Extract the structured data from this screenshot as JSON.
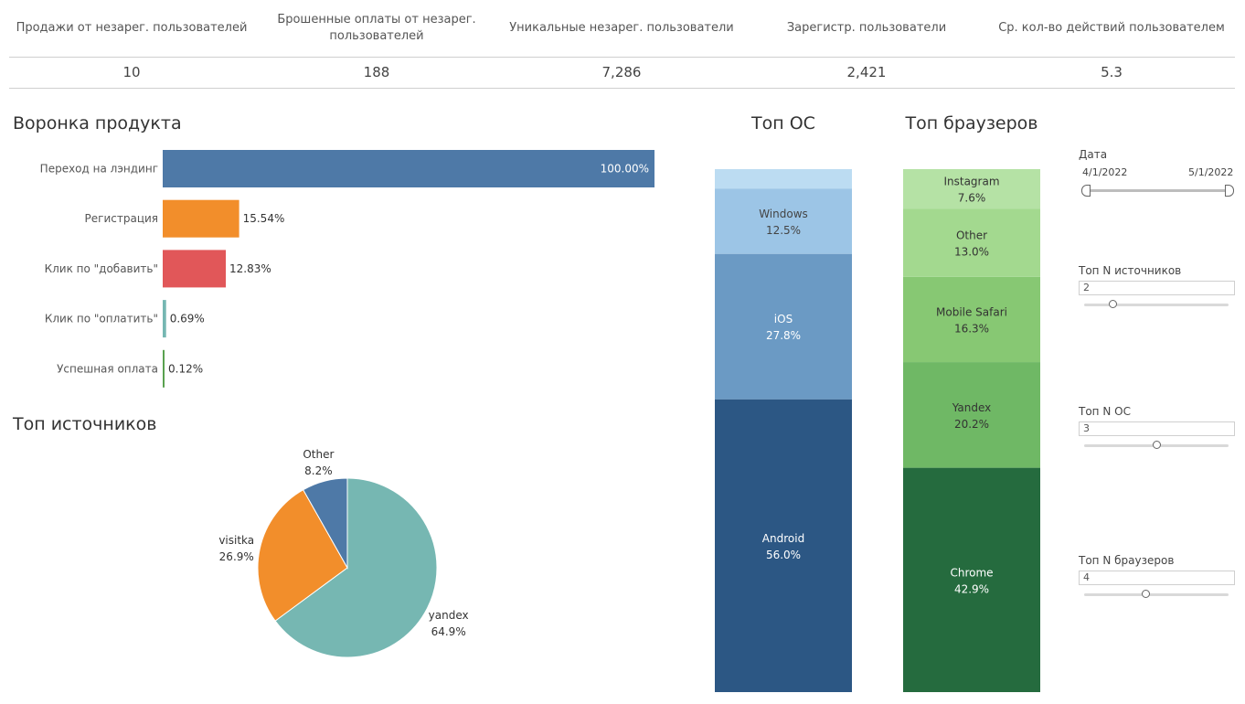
{
  "kpis": [
    {
      "label": "Продажи от незарег. пользователей",
      "value": "10"
    },
    {
      "label": "Брошенные оплаты от незарег. пользователей",
      "value": "188"
    },
    {
      "label": "Уникальные незарег. пользователи",
      "value": "7,286"
    },
    {
      "label": "Зарегистр. пользователи",
      "value": "2,421"
    },
    {
      "label": "Ср. кол-во действий пользователем",
      "value": "5.3"
    }
  ],
  "titles": {
    "funnel": "Воронка продукта",
    "sources": "Топ источников",
    "os": "Топ ОС",
    "browsers": "Топ браузеров"
  },
  "filters": {
    "date_label": "Дата",
    "date_start": "4/1/2022",
    "date_end": "5/1/2022",
    "top_sources_label": "Топ N источников",
    "top_sources_value": "2",
    "top_sources_level": 0.2,
    "top_os_label": "Топ N ОС",
    "top_os_value": "3",
    "top_os_level": 0.5,
    "top_browsers_label": "Топ N браузеров",
    "top_browsers_value": "4",
    "top_browsers_level": 0.43
  },
  "chart_data": [
    {
      "type": "bar",
      "orientation": "horizontal",
      "title": "Воронка продукта",
      "categories": [
        "Переход на лэндинг",
        "Регистрация",
        "Клик по \"добавить\"",
        "Клик по \"оплатить\"",
        "Успешная оплата"
      ],
      "values": [
        100.0,
        15.54,
        12.83,
        0.69,
        0.12
      ],
      "labels": [
        "100.00%",
        "15.54%",
        "12.83%",
        "0.69%",
        "0.12%"
      ],
      "colors": [
        "#4e79a7",
        "#f28e2b",
        "#e15759",
        "#76b7b2",
        "#59a14f"
      ]
    },
    {
      "type": "pie",
      "title": "Топ источников",
      "categories": [
        "yandex",
        "visitka",
        "Other"
      ],
      "values": [
        64.9,
        26.9,
        8.2
      ],
      "labels": [
        "64.9%",
        "26.9%",
        "8.2%"
      ],
      "colors": [
        "#76b7b2",
        "#f28e2b",
        "#4e79a7"
      ]
    },
    {
      "type": "bar",
      "stacked": true,
      "title": "Топ ОС",
      "categories": [
        "Android",
        "iOS",
        "Windows",
        ""
      ],
      "values": [
        56.0,
        27.8,
        12.5,
        3.7
      ],
      "labels": [
        "56.0%",
        "27.8%",
        "12.5%",
        ""
      ],
      "colors": [
        "#2c5784",
        "#6b9ac4",
        "#9cc5e6",
        "#bcdcf2"
      ],
      "text_colors": [
        "#ffffff",
        "#ffffff",
        "#444444",
        "#444444"
      ]
    },
    {
      "type": "bar",
      "stacked": true,
      "title": "Топ браузеров",
      "categories": [
        "Chrome",
        "Yandex",
        "Mobile Safari",
        "Other",
        "Instagram"
      ],
      "values": [
        42.9,
        20.2,
        16.3,
        13.0,
        7.6
      ],
      "labels": [
        "42.9%",
        "20.2%",
        "16.3%",
        "13.0%",
        "7.6%"
      ],
      "colors": [
        "#256b3e",
        "#6fb865",
        "#87c873",
        "#a3d98f",
        "#b5e2a5"
      ],
      "text_colors": [
        "#ffffff",
        "#333333",
        "#333333",
        "#333333",
        "#333333"
      ]
    }
  ]
}
